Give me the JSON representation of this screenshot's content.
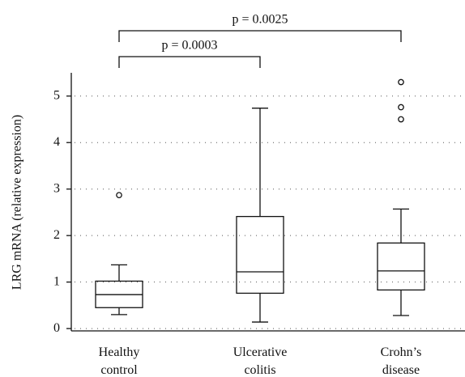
{
  "chart_data": {
    "type": "box",
    "y_label": "LRG mRNA (relative expression)",
    "categories": [
      "Healthy control",
      "Ulcerative colitis",
      "Crohn’s disease"
    ],
    "boxes": [
      {
        "whislo": 0.3,
        "q1": 0.45,
        "med": 0.73,
        "q3": 1.02,
        "whishi": 1.37,
        "fliers": [
          2.87
        ]
      },
      {
        "whislo": 0.14,
        "q1": 0.76,
        "med": 1.22,
        "q3": 2.41,
        "whishi": 4.74,
        "fliers": []
      },
      {
        "whislo": 0.28,
        "q1": 0.83,
        "med": 1.24,
        "q3": 1.84,
        "whishi": 2.57,
        "fliers": [
          4.5,
          4.76,
          5.3
        ]
      }
    ],
    "color": "#111111",
    "ylim": [
      -0.05,
      5.5
    ],
    "yticks": [
      0,
      1,
      2,
      3,
      4,
      5
    ],
    "grid": true,
    "annotations": [
      {
        "text": "p = 0.0003",
        "from": 0,
        "to": 1
      },
      {
        "text": "p = 0.0025",
        "from": 0,
        "to": 2
      }
    ]
  }
}
